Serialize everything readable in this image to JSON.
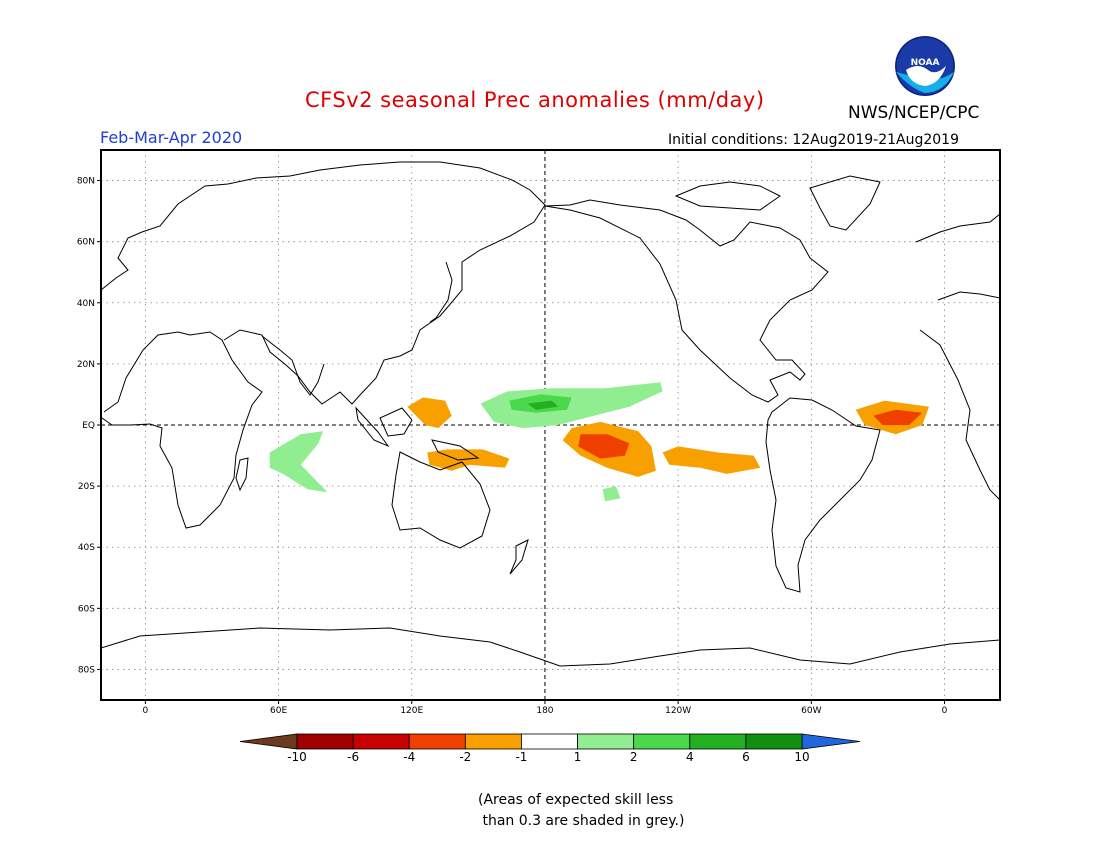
{
  "title": "CFSv2 seasonal Prec anomalies (mm/day)",
  "agency": "NWS/NCEP/CPC",
  "logo_text": "NOAA",
  "period": "Feb-Mar-Apr 2020",
  "initial_conditions": "Initial conditions: 12Aug2019-21Aug2019",
  "note": "(Areas of expected skill less\n than 0.3 are shaded in grey.)",
  "map": {
    "lat_labels": [
      {
        "lat": 80,
        "label": "80N"
      },
      {
        "lat": 60,
        "label": "60N"
      },
      {
        "lat": 40,
        "label": "40N"
      },
      {
        "lat": 20,
        "label": "20N"
      },
      {
        "lat": 0,
        "label": "EQ"
      },
      {
        "lat": -20,
        "label": "20S"
      },
      {
        "lat": -40,
        "label": "40S"
      },
      {
        "lat": -60,
        "label": "60S"
      },
      {
        "lat": -80,
        "label": "80S"
      }
    ],
    "lon_labels": [
      {
        "lon": 0,
        "label": "0"
      },
      {
        "lon": 60,
        "label": "60E"
      },
      {
        "lon": 120,
        "label": "120E"
      },
      {
        "lon": 180,
        "label": "180"
      },
      {
        "lon": 240,
        "label": "120W"
      },
      {
        "lon": 300,
        "label": "60W"
      },
      {
        "lon": 360,
        "label": "0"
      }
    ],
    "lon_range": [
      -20,
      385
    ],
    "lat_range": [
      -90,
      90
    ]
  },
  "colorbar": {
    "labels": [
      "-10",
      "-6",
      "-4",
      "-2",
      "-1",
      "1",
      "2",
      "4",
      "6",
      "10"
    ],
    "under_color": "#6b3a1e",
    "over_color": "#2266dd",
    "bins": [
      "#a00000",
      "#c80000",
      "#f04000",
      "#f8a000",
      "#ffffff",
      "#90ee90",
      "#4cd84c",
      "#22b022",
      "#109010"
    ]
  },
  "anomalies": [
    {
      "name": "central-pacific-dry",
      "bin": -2,
      "color": "#f8a000",
      "poly": [
        [
          192,
          -1
        ],
        [
          205,
          1
        ],
        [
          222,
          -2
        ],
        [
          228,
          -7
        ],
        [
          230,
          -15
        ],
        [
          222,
          -17
        ],
        [
          208,
          -14
        ],
        [
          196,
          -10
        ],
        [
          188,
          -5
        ]
      ]
    },
    {
      "name": "central-pacific-dry-core",
      "bin": -4,
      "color": "#f04000",
      "poly": [
        [
          196,
          -3
        ],
        [
          208,
          -3
        ],
        [
          218,
          -6
        ],
        [
          216,
          -10
        ],
        [
          205,
          -11
        ],
        [
          195,
          -7
        ]
      ]
    },
    {
      "name": "east-pacific-dry",
      "bin": -2,
      "color": "#f8a000",
      "poly": [
        [
          233,
          -9
        ],
        [
          240,
          -7
        ],
        [
          258,
          -9
        ],
        [
          274,
          -10
        ],
        [
          277,
          -14
        ],
        [
          262,
          -16
        ],
        [
          250,
          -14
        ],
        [
          236,
          -13
        ]
      ]
    },
    {
      "name": "equatorial-atlantic-dry",
      "bin": -2,
      "color": "#f8a000",
      "poly": [
        [
          320,
          5
        ],
        [
          333,
          8
        ],
        [
          353,
          6
        ],
        [
          350,
          0
        ],
        [
          338,
          -3
        ],
        [
          324,
          0
        ]
      ]
    },
    {
      "name": "equatorial-atlantic-dry-core",
      "bin": -4,
      "color": "#f04000",
      "poly": [
        [
          328,
          3
        ],
        [
          338,
          5
        ],
        [
          350,
          4
        ],
        [
          344,
          0
        ],
        [
          332,
          0
        ]
      ]
    },
    {
      "name": "maritime-continent-dry-north",
      "bin": -2,
      "color": "#f8a000",
      "poly": [
        [
          118,
          6
        ],
        [
          125,
          9
        ],
        [
          135,
          8
        ],
        [
          138,
          3
        ],
        [
          132,
          -1
        ],
        [
          126,
          0
        ]
      ]
    },
    {
      "name": "maritime-continent-dry-south",
      "bin": -2,
      "color": "#f8a000",
      "poly": [
        [
          127,
          -9
        ],
        [
          136,
          -8
        ],
        [
          152,
          -8
        ],
        [
          164,
          -11
        ],
        [
          162,
          -14
        ],
        [
          146,
          -13
        ],
        [
          138,
          -15
        ],
        [
          128,
          -13
        ]
      ]
    },
    {
      "name": "west-pacific-wet",
      "bin": 1,
      "color": "#90ee90",
      "poly": [
        [
          151,
          7
        ],
        [
          163,
          11
        ],
        [
          183,
          12
        ],
        [
          207,
          12
        ],
        [
          232,
          14
        ],
        [
          233,
          11
        ],
        [
          218,
          6
        ],
        [
          202,
          3
        ],
        [
          186,
          0
        ],
        [
          170,
          -1
        ],
        [
          157,
          1
        ]
      ]
    },
    {
      "name": "west-pacific-wet-core",
      "bin": 2,
      "color": "#4cd84c",
      "poly": [
        [
          164,
          8
        ],
        [
          178,
          10
        ],
        [
          192,
          9
        ],
        [
          190,
          5
        ],
        [
          176,
          4
        ],
        [
          165,
          5
        ]
      ]
    },
    {
      "name": "west-pacific-wet-center",
      "bin": 4,
      "color": "#22b022",
      "poly": [
        [
          172,
          7
        ],
        [
          183,
          8
        ],
        [
          186,
          6
        ],
        [
          176,
          5
        ]
      ]
    },
    {
      "name": "indian-ocean-wet",
      "bin": 1,
      "color": "#90ee90",
      "poly": [
        [
          56,
          -9
        ],
        [
          70,
          -3
        ],
        [
          80,
          -2
        ],
        [
          78,
          -6
        ],
        [
          70,
          -13
        ],
        [
          82,
          -22
        ],
        [
          73,
          -21
        ],
        [
          62,
          -16
        ],
        [
          56,
          -14
        ]
      ]
    },
    {
      "name": "south-pacific-wet",
      "bin": 1,
      "color": "#90ee90",
      "poly": [
        [
          206,
          -21
        ],
        [
          212,
          -20
        ],
        [
          214,
          -24
        ],
        [
          207,
          -25
        ]
      ]
    }
  ]
}
